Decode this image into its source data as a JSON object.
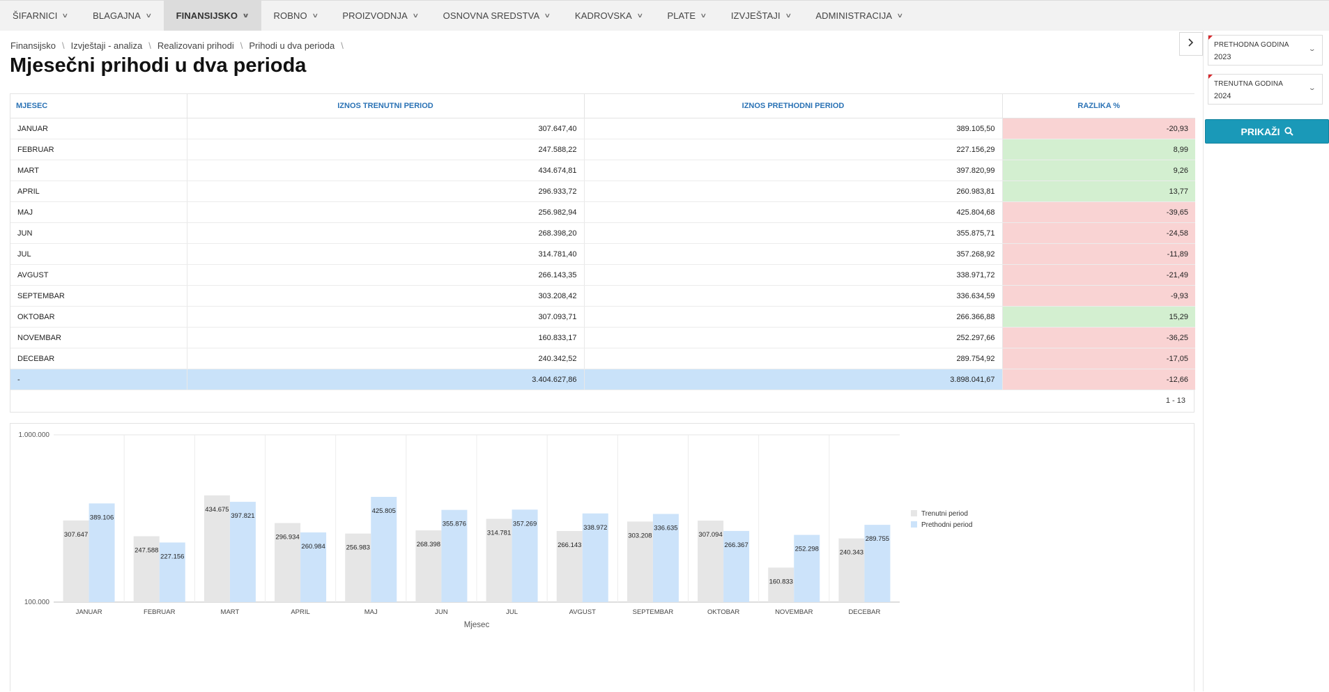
{
  "nav": {
    "items": [
      {
        "label": "ŠIFARNICI",
        "active": false
      },
      {
        "label": "BLAGAJNA",
        "active": false
      },
      {
        "label": "FINANSIJSKO",
        "active": true
      },
      {
        "label": "ROBNO",
        "active": false
      },
      {
        "label": "PROIZVODNJA",
        "active": false
      },
      {
        "label": "OSNOVNA SREDSTVA",
        "active": false
      },
      {
        "label": "KADROVSKA",
        "active": false
      },
      {
        "label": "PLATE",
        "active": false
      },
      {
        "label": "IZVJEŠTAJI",
        "active": false
      },
      {
        "label": "ADMINISTRACIJA",
        "active": false
      }
    ]
  },
  "breadcrumb": [
    "Finansijsko",
    "Izvještaji - analiza",
    "Realizovani prihodi",
    "Prihodi u dva perioda"
  ],
  "page_title": "Mjesečni prihodi u dva perioda",
  "filters": {
    "previous_year_label": "PRETHODNA GODINA",
    "previous_year_value": "2023",
    "current_year_label": "TRENUTNA GODINA",
    "current_year_value": "2024",
    "show_button": "PRIKAŽI"
  },
  "table": {
    "columns": [
      "MJESEC",
      "IZNOS TRENUTNI PERIOD",
      "IZNOS PRETHODNI PERIOD",
      "RAZLIKA %"
    ],
    "rows": [
      {
        "month": "JANUAR",
        "current": "307.647,40",
        "previous": "389.105,50",
        "diff": "-20,93",
        "sign": "neg"
      },
      {
        "month": "FEBRUAR",
        "current": "247.588,22",
        "previous": "227.156,29",
        "diff": "8,99",
        "sign": "pos"
      },
      {
        "month": "MART",
        "current": "434.674,81",
        "previous": "397.820,99",
        "diff": "9,26",
        "sign": "pos"
      },
      {
        "month": "APRIL",
        "current": "296.933,72",
        "previous": "260.983,81",
        "diff": "13,77",
        "sign": "pos"
      },
      {
        "month": "MAJ",
        "current": "256.982,94",
        "previous": "425.804,68",
        "diff": "-39,65",
        "sign": "neg"
      },
      {
        "month": "JUN",
        "current": "268.398,20",
        "previous": "355.875,71",
        "diff": "-24,58",
        "sign": "neg"
      },
      {
        "month": "JUL",
        "current": "314.781,40",
        "previous": "357.268,92",
        "diff": "-11,89",
        "sign": "neg"
      },
      {
        "month": "AVGUST",
        "current": "266.143,35",
        "previous": "338.971,72",
        "diff": "-21,49",
        "sign": "neg"
      },
      {
        "month": "SEPTEMBAR",
        "current": "303.208,42",
        "previous": "336.634,59",
        "diff": "-9,93",
        "sign": "neg"
      },
      {
        "month": "OKTOBAR",
        "current": "307.093,71",
        "previous": "266.366,88",
        "diff": "15,29",
        "sign": "pos"
      },
      {
        "month": "NOVEMBAR",
        "current": "160.833,17",
        "previous": "252.297,66",
        "diff": "-36,25",
        "sign": "neg"
      },
      {
        "month": "DECEBAR",
        "current": "240.342,52",
        "previous": "289.754,92",
        "diff": "-17,05",
        "sign": "neg"
      }
    ],
    "total": {
      "month": "-",
      "current": "3.404.627,86",
      "previous": "3.898.041,67",
      "diff": "-12,66",
      "sign": "neg"
    },
    "pager": "1 - 13"
  },
  "chart_data": {
    "type": "bar",
    "categories": [
      "JANUAR",
      "FEBRUAR",
      "MART",
      "APRIL",
      "MAJ",
      "JUN",
      "JUL",
      "AVGUST",
      "SEPTEMBAR",
      "OKTOBAR",
      "NOVEMBAR",
      "DECEBAR"
    ],
    "series": [
      {
        "name": "Trenutni period",
        "color": "#e6e6e6",
        "values": [
          307647,
          247588,
          434675,
          296934,
          256983,
          268398,
          314781,
          266143,
          303208,
          307094,
          160833,
          240343
        ],
        "labels": [
          "307.647",
          "247.588",
          "434.675",
          "296.934",
          "256.983",
          "268.398",
          "314.781",
          "266.143",
          "303.208",
          "307.094",
          "160.833",
          "240.343"
        ]
      },
      {
        "name": "Prethodni period",
        "color": "#cce3fa",
        "values": [
          389106,
          227156,
          397821,
          260984,
          425805,
          355876,
          357269,
          338972,
          336635,
          266367,
          252298,
          289755
        ],
        "labels": [
          "389.106",
          "227.156",
          "397.821",
          "260.984",
          "425.805",
          "355.876",
          "357.269",
          "338.972",
          "336.635",
          "266.367",
          "252.298",
          "289.755"
        ]
      }
    ],
    "xlabel": "Mjesec",
    "ylabel": "",
    "ylim": [
      100000,
      1000000
    ],
    "yscale": "log",
    "yticks": [
      {
        "value": 100000,
        "label": "100.000"
      },
      {
        "value": 1000000,
        "label": "1.000.000"
      }
    ],
    "legend_position": "right"
  }
}
